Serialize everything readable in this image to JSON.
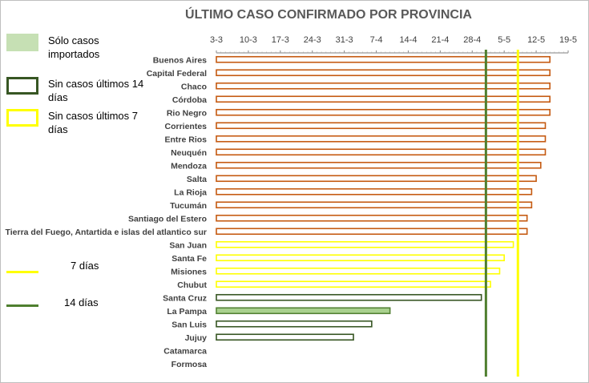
{
  "chart_data": {
    "type": "bar",
    "title": "ÚLTIMO CASO CONFIRMADO POR PROVINCIA",
    "x_ticks": [
      "3-3",
      "10-3",
      "17-3",
      "24-3",
      "31-3",
      "7-4",
      "14-4",
      "21-4",
      "28-4",
      "5-5",
      "12-5",
      "19-5"
    ],
    "x_tick_days": [
      0,
      7,
      14,
      21,
      28,
      35,
      42,
      49,
      56,
      63,
      70,
      77
    ],
    "x_range_days": [
      0,
      77
    ],
    "x_unit": "days since 3-3",
    "categories": [
      "Buenos Aires",
      "Capital Federal",
      "Chaco",
      "Córdoba",
      "Rio Negro",
      "Corrientes",
      "Entre Rios",
      "Neuquén",
      "Mendoza",
      "Salta",
      "La Rioja",
      "Tucumán",
      "Santiago del Estero",
      "Tierra del Fuego, Antartida e islas del atlantico sur",
      "San Juan",
      "Santa Fe",
      "Misiones",
      "Chubut",
      "Santa Cruz",
      "La Pampa",
      "San Luis",
      "Jujuy",
      "Catamarca",
      "Formosa"
    ],
    "values": [
      73,
      73,
      73,
      73,
      73,
      72,
      72,
      72,
      71,
      70,
      69,
      69,
      68,
      68,
      65,
      63,
      62,
      60,
      58,
      38,
      34,
      30,
      null,
      null
    ],
    "status": [
      "recent",
      "recent",
      "recent",
      "recent",
      "recent",
      "recent",
      "recent",
      "recent",
      "recent",
      "recent",
      "recent",
      "recent",
      "recent",
      "recent",
      "no_cases_7",
      "no_cases_7",
      "no_cases_7",
      "no_cases_7",
      "no_cases_14",
      "imported_only",
      "no_cases_14",
      "no_cases_14",
      "none",
      "none"
    ],
    "reference_lines": [
      {
        "label": "7 días",
        "day": 66,
        "color": "#ffff00"
      },
      {
        "label": "14 días",
        "day": 59,
        "color": "#4f7f2f"
      }
    ],
    "legend": [
      {
        "label": "Sólo casos importados",
        "fill": "#c6e0b4",
        "border": "#c6e0b4"
      },
      {
        "label": "Sin casos últimos 14 días",
        "fill": "#ffffff",
        "border": "#375623"
      },
      {
        "label": "Sin casos últimos 7 días",
        "fill": "#ffffff",
        "border": "#ffff00"
      }
    ],
    "colors": {
      "recent_border": "#c55a11",
      "no_cases_7_border": "#ffff00",
      "no_cases_14_border": "#375623",
      "imported_fill": "#a9d18e",
      "imported_border": "#548235",
      "grid": "#d9d9d9",
      "axis_text": "#404040"
    },
    "legend_placement": "left",
    "grid": false
  }
}
